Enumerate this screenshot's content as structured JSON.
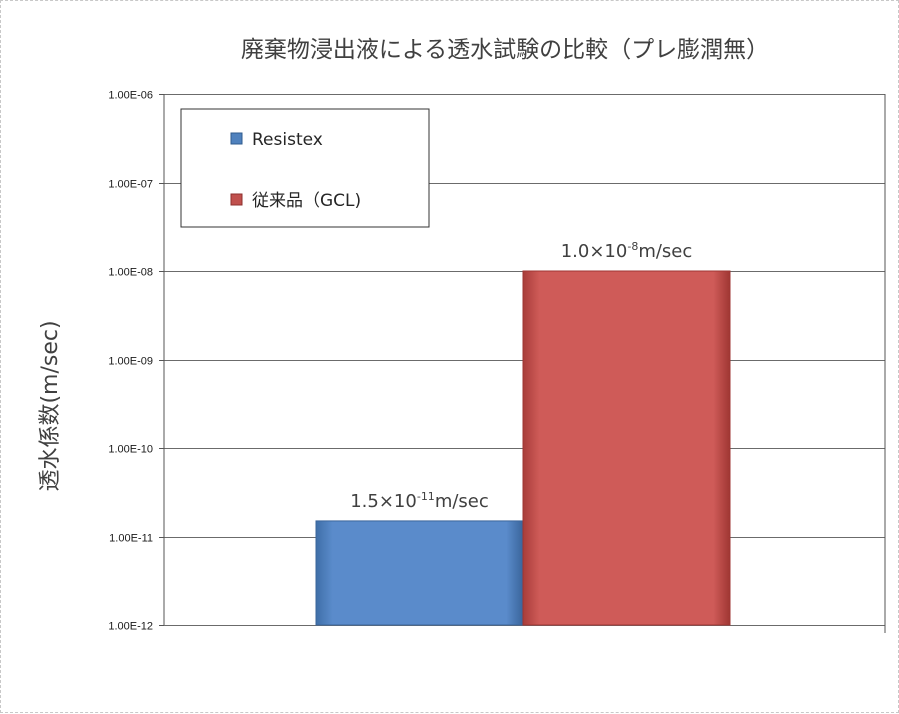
{
  "chart_data": {
    "type": "bar",
    "title": "廃棄物浸出液による透水試験の比較（プレ膨潤無）",
    "ylabel": "透水係数(m/sec)",
    "xlabel": "",
    "yscale": "log",
    "ylim": [
      1e-12,
      1e-06
    ],
    "yticks": [
      {
        "value": 1e-12,
        "label": "1.00E-12"
      },
      {
        "value": 1e-11,
        "label": "1.00E-11"
      },
      {
        "value": 1e-10,
        "label": "1.00E-10"
      },
      {
        "value": 1e-09,
        "label": "1.00E-09"
      },
      {
        "value": 1e-08,
        "label": "1.00E-08"
      },
      {
        "value": 1e-07,
        "label": "1.00E-07"
      },
      {
        "value": 1e-06,
        "label": "1.00E-06"
      }
    ],
    "grid": true,
    "legend_position": "top-left",
    "series": [
      {
        "name": "Resistex",
        "value": 1.5e-11,
        "label_mantissa": "1.5×10",
        "label_exponent": "-11",
        "label_unit": "m/sec",
        "color": "#4f81bd"
      },
      {
        "name": "従来品（GCL)",
        "value": 1e-08,
        "label_mantissa": "1.0×10",
        "label_exponent": "-8",
        "label_unit": "m/sec",
        "color": "#c0504d"
      }
    ]
  }
}
